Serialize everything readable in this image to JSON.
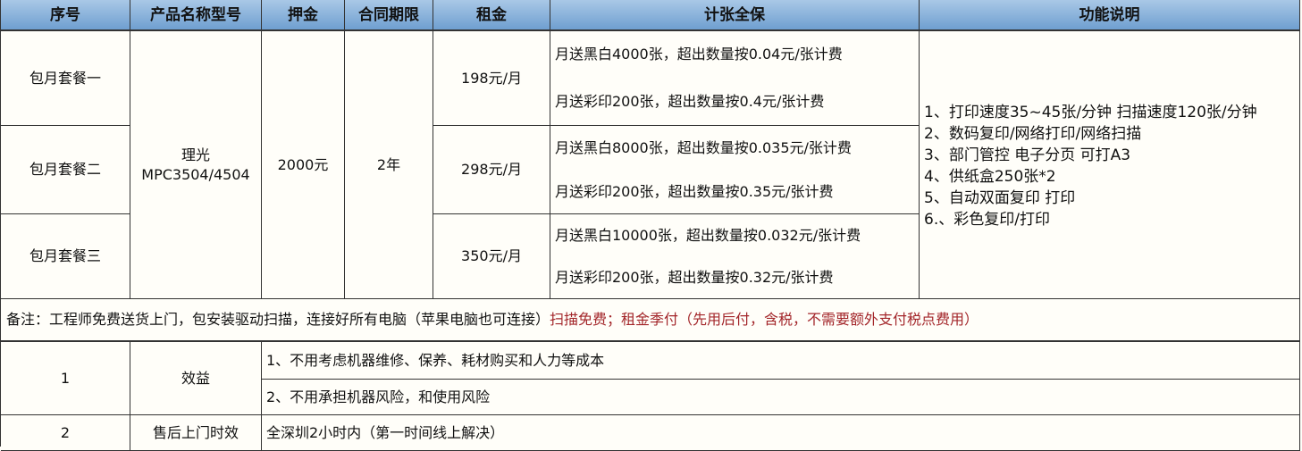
{
  "headers": [
    "序号",
    "产品名称型号",
    "押金",
    "合同期限",
    "租金",
    "计张全保",
    "功能说明"
  ],
  "plans": [
    {
      "name": "包月套餐一",
      "rent": "198元/月",
      "bw": "月送黑白4000张，超出数量按0.04元/张计费",
      "color": "月送彩印200张，超出数量按0.4元/张计费"
    },
    {
      "name": "包月套餐二",
      "rent": "298元/月",
      "bw": "月送黑白8000张，超出数量按0.035元/张计费",
      "color": "月送彩印200张，超出数量按0.35元/张计费"
    },
    {
      "name": "包月套餐三",
      "rent": "350元/月",
      "bw": "月送黑白10000张，超出数量按0.032元/张计费",
      "color": "月送彩印200张，超出数量按0.32元/张计费"
    }
  ],
  "product": {
    "line1": "理光",
    "line2": "MPC3504/4504"
  },
  "deposit": "2000元",
  "term": "2年",
  "features": [
    "1、打印速度35~45张/分钟 扫描速度120张/分钟",
    "2、数码复印/网络打印/网络扫描",
    "3、部门管控  电子分页  可打A3",
    "4、供纸盒250张*2",
    "5、自动双面复印 打印",
    "6.、彩色复印/打印"
  ],
  "note": {
    "black": "备注：工程师免费送货上门，包安装驱动扫描，连接好所有电脑（苹果电脑也可连接）",
    "red": "扫描免费；租金季付（先用后付，含税，不需要额外支付税点费用）",
    "red_color": "#a3262a"
  },
  "rows": [
    {
      "no": "1",
      "title": "效益",
      "items": [
        "1、不用考虑机器维修、保养、耗材购买和人力等成本",
        "2、不用承担机器风险，和使用风险"
      ]
    },
    {
      "no": "2",
      "title": "售后上门时效",
      "items": [
        "全深圳2小时内（第一时间线上解决）"
      ]
    }
  ]
}
